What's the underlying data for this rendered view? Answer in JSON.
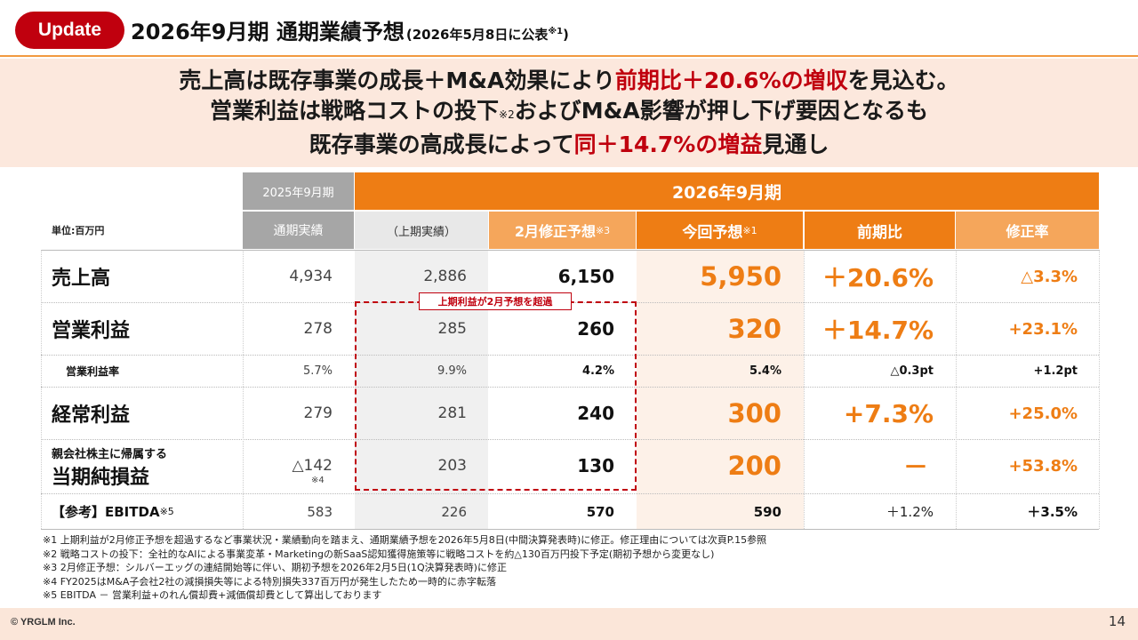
{
  "header": {
    "badge": "Update",
    "title": "2026年9月期 通期業績予想",
    "subtitle": "(2026年5月8日に公表",
    "subtitle_mark": "※1",
    "subtitle_close": ")"
  },
  "headline": {
    "l1_a": "売上高は既存事業の成長＋M&A効果により",
    "l1_red": "前期比＋20.6%の増収",
    "l1_b": "を見込む。",
    "l2_a": "営業利益は戦略コストの投下",
    "l2_note": "※2",
    "l2_b": "およびM&A影響が押し下げ要因となるも",
    "l3_a": "既存事業の高成長によって",
    "l3_red": "同＋14.7%の増益",
    "l3_b": "見通し"
  },
  "table": {
    "unit": "単位:百万円",
    "fy2025": "2025年9月期",
    "fy2026": "2026年9月期",
    "cols": {
      "actual": "通期実績",
      "h1": "（上期実績）",
      "feb": "2月修正予想",
      "feb_note": "※3",
      "cur": "今回予想",
      "cur_note": "※1",
      "yoy": "前期比",
      "rev": "修正率"
    },
    "rows": {
      "sales": {
        "label": "売上高",
        "actual": "4,934",
        "h1": "2,886",
        "feb": "6,150",
        "cur": "5,950",
        "yoy": "＋20.6%",
        "rev": "△3.3%"
      },
      "op": {
        "label": "営業利益",
        "actual": "278",
        "h1": "285",
        "feb": "260",
        "cur": "320",
        "yoy": "＋14.7%",
        "rev": "+23.1%"
      },
      "opm": {
        "label": "営業利益率",
        "actual": "5.7%",
        "h1": "9.9%",
        "feb": "4.2%",
        "cur": "5.4%",
        "yoy": "△0.3pt",
        "rev": "+1.2pt"
      },
      "ord": {
        "label": "経常利益",
        "actual": "279",
        "h1": "281",
        "feb": "240",
        "cur": "300",
        "yoy": "+7.3%",
        "rev": "+25.0%"
      },
      "net": {
        "label1": "親会社株主に帰属する",
        "label2": "当期純損益",
        "actual": "△142",
        "actual_note": "※4",
        "h1": "203",
        "feb": "130",
        "cur": "200",
        "yoy": "－",
        "rev": "+53.8%"
      },
      "ebitda": {
        "label": "【参考】EBITDA",
        "label_note": "※5",
        "actual": "583",
        "h1": "226",
        "feb": "570",
        "cur": "590",
        "yoy": "＋1.2%",
        "rev": "＋3.5%"
      }
    },
    "callout": "上期利益が2月予想を超過"
  },
  "footnotes": [
    "※1 上期利益が2月修正予想を超過するなど事業状況・業績動向を踏まえ、通期業績予想を2026年5月8日(中間決算発表時)に修正。修正理由については次頁P.15参照",
    "※2 戦略コストの投下：全社的なAIによる事業変革・Marketingの新SaaS認知獲得施策等に戦略コストを約△130百万円投下予定(期初予想から変更なし)",
    "※3 2月修正予想：シルバーエッグの連結開始等に伴い、期初予想を2026年2月5日(1Q決算発表時)に修正",
    "※4 FY2025はM&A子会社2社の減損損失等による特別損失337百万円が発生したため一時的に赤字転落",
    "※5 EBITDA － 営業利益+のれん償却費+減価償却費として算出しております"
  ],
  "footer": {
    "copyright": "© YRGLM Inc.",
    "page": "14"
  },
  "colors": {
    "accent_red": "#c0000e",
    "accent_orange": "#ee7d14"
  }
}
